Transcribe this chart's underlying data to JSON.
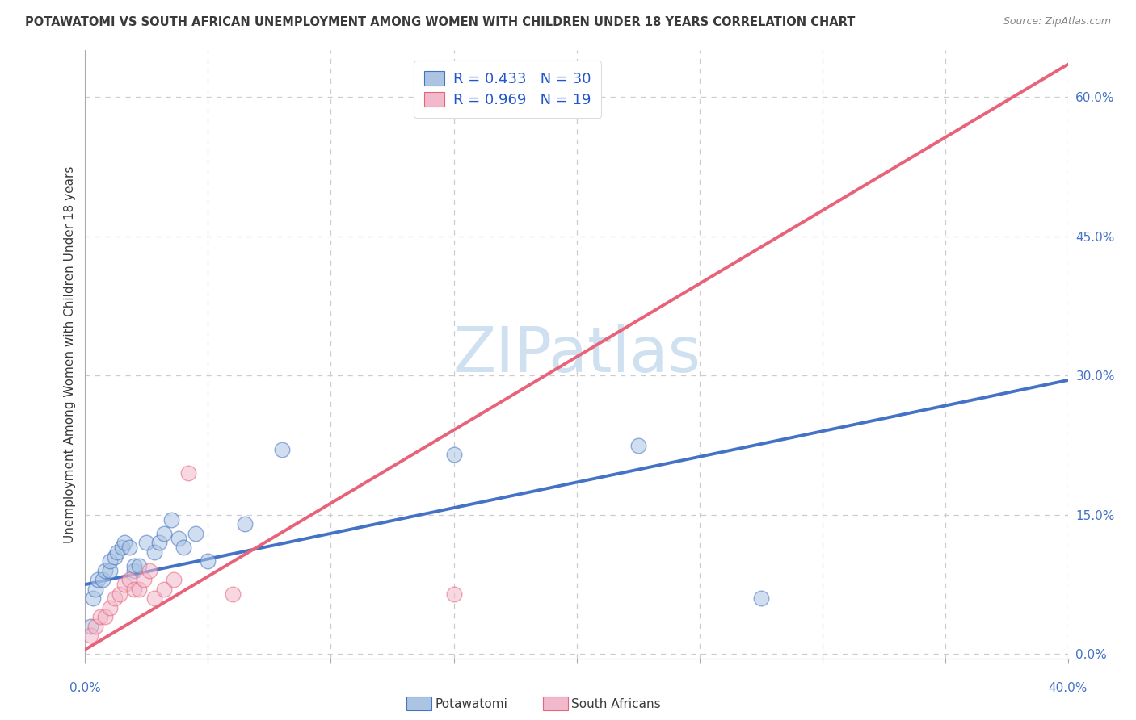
{
  "title": "POTAWATOMI VS SOUTH AFRICAN UNEMPLOYMENT AMONG WOMEN WITH CHILDREN UNDER 18 YEARS CORRELATION CHART",
  "source": "Source: ZipAtlas.com",
  "ylabel": "Unemployment Among Women with Children Under 18 years",
  "xlim": [
    0.0,
    0.4
  ],
  "ylim": [
    -0.005,
    0.65
  ],
  "xticks": [
    0.0,
    0.05,
    0.1,
    0.15,
    0.2,
    0.25,
    0.3,
    0.35,
    0.4
  ],
  "yticks_right": [
    0.0,
    0.15,
    0.3,
    0.45,
    0.6
  ],
  "ytick_right_labels": [
    "0.0%",
    "15.0%",
    "30.0%",
    "45.0%",
    "60.0%"
  ],
  "R_blue": 0.433,
  "N_blue": 30,
  "R_pink": 0.969,
  "N_pink": 19,
  "legend_label_blue": "Potawatomi",
  "legend_label_pink": "South Africans",
  "blue_color": "#aac4e2",
  "blue_line_color": "#4472c4",
  "pink_color": "#f2b8cb",
  "pink_line_color": "#e8637a",
  "title_color": "#3a3a3a",
  "source_color": "#888888",
  "legend_text_color": "#2255cc",
  "watermark_text": "ZIPatlas",
  "watermark_color": "#cfe0f0",
  "blue_points_x": [
    0.002,
    0.003,
    0.004,
    0.005,
    0.007,
    0.008,
    0.01,
    0.01,
    0.012,
    0.013,
    0.015,
    0.016,
    0.018,
    0.02,
    0.02,
    0.022,
    0.025,
    0.028,
    0.03,
    0.032,
    0.035,
    0.038,
    0.04,
    0.045,
    0.05,
    0.065,
    0.08,
    0.15,
    0.225,
    0.275
  ],
  "blue_points_y": [
    0.03,
    0.06,
    0.07,
    0.08,
    0.08,
    0.09,
    0.09,
    0.1,
    0.105,
    0.11,
    0.115,
    0.12,
    0.115,
    0.09,
    0.095,
    0.095,
    0.12,
    0.11,
    0.12,
    0.13,
    0.145,
    0.125,
    0.115,
    0.13,
    0.1,
    0.14,
    0.22,
    0.215,
    0.225,
    0.06
  ],
  "pink_points_x": [
    0.002,
    0.004,
    0.006,
    0.008,
    0.01,
    0.012,
    0.014,
    0.016,
    0.018,
    0.02,
    0.022,
    0.024,
    0.026,
    0.028,
    0.032,
    0.036,
    0.042,
    0.06,
    0.15
  ],
  "pink_points_y": [
    0.02,
    0.03,
    0.04,
    0.04,
    0.05,
    0.06,
    0.065,
    0.075,
    0.08,
    0.07,
    0.07,
    0.08,
    0.09,
    0.06,
    0.07,
    0.08,
    0.195,
    0.065,
    0.065
  ],
  "blue_line_x": [
    0.0,
    0.4
  ],
  "blue_line_y": [
    0.075,
    0.295
  ],
  "pink_line_x": [
    0.0,
    0.4
  ],
  "pink_line_y": [
    0.005,
    0.635
  ],
  "background_color": "#ffffff",
  "grid_color": "#cccccc",
  "dot_size": 180,
  "dot_alpha": 0.55,
  "dot_edge_width": 1.0
}
